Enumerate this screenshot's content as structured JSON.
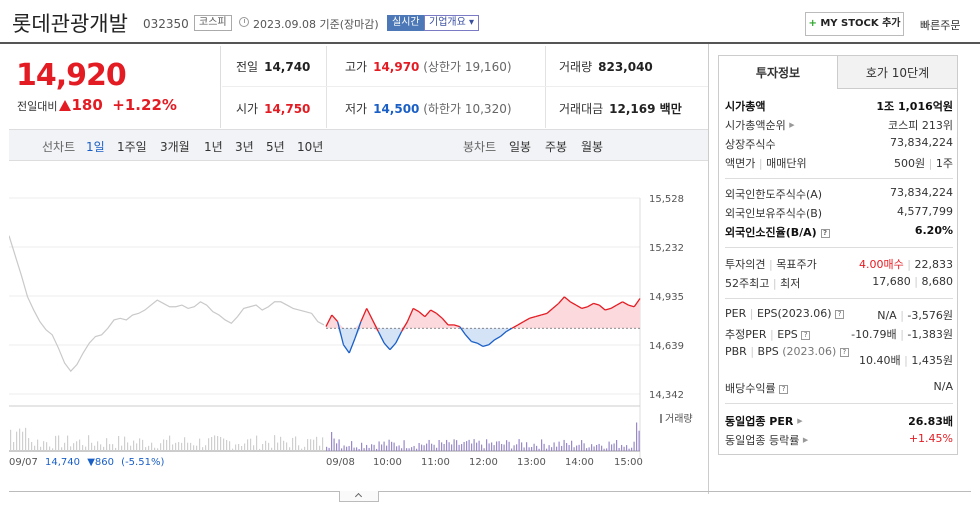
{
  "header": {
    "company_name": "롯데관광개발",
    "code": "032350",
    "market": "코스피",
    "date_label": "2023.09.08 기준(장마감)",
    "realtime_label": "실시간",
    "company_info_label": "기업개요 ▾",
    "mystock_plus": "+",
    "mystock_label": "MY STOCK 추가",
    "quick_order": "빠른주문"
  },
  "price": {
    "current": "14,920",
    "diff_label": "전일대비",
    "diff_value": "180",
    "diff_pct": "+1.22%"
  },
  "quote": {
    "prev_close": {
      "label": "전일",
      "value": "14,740"
    },
    "high": {
      "label": "고가",
      "value": "14,970",
      "sub": "(상한가 19,160)"
    },
    "volume": {
      "label": "거래량",
      "value": "823,040"
    },
    "open": {
      "label": "시가",
      "value": "14,750"
    },
    "low": {
      "label": "저가",
      "value": "14,500",
      "sub": "(하한가 10,320)"
    },
    "amount": {
      "label": "거래대금",
      "value": "12,169 백만"
    }
  },
  "periods": {
    "line_label": "선차트",
    "line_items": [
      "1일",
      "1주일",
      "3개월",
      "1년",
      "3년",
      "5년",
      "10년"
    ],
    "active": "1일",
    "candle_label": "봉차트",
    "candle_items": [
      "일봉",
      "주봉",
      "월봉"
    ]
  },
  "chart_data": {
    "type": "line",
    "y_ticks": [
      "15,528",
      "15,232",
      "14,935",
      "14,639",
      "14,342"
    ],
    "ylim": [
      14342,
      15528
    ],
    "baseline": 14740,
    "x_labels": [
      "09/07",
      "09/08",
      "10:00",
      "11:00",
      "12:00",
      "13:00",
      "14:00",
      "15:00"
    ],
    "volume_label": "거래량",
    "prev_day_summary": {
      "date": "09/07",
      "close": "14,740",
      "change": "▼860",
      "pct": "(-5.51%)"
    },
    "series": [
      {
        "values": [
          15300,
          15180,
          15060,
          14930,
          14850,
          14780,
          14730,
          14700,
          14620,
          14530,
          14480,
          14520,
          14590,
          14650,
          14690,
          14700,
          14740,
          14790,
          14800,
          14790,
          14820,
          14830,
          14850,
          14880,
          14910,
          14890,
          14870,
          14870,
          14880,
          14860,
          14870,
          14900,
          14880,
          14840,
          14820,
          14790,
          14770,
          14810,
          14860,
          14870,
          14880,
          14850,
          14870,
          14900,
          14900,
          14880,
          14860,
          14850,
          14840,
          14830,
          14780,
          14760
        ]
      },
      {
        "values": [
          14750,
          14820,
          14780,
          14640,
          14590,
          14680,
          14780,
          14860,
          14790,
          14720,
          14650,
          14610,
          14650,
          14720,
          14780,
          14860,
          14840,
          14810,
          14850,
          14830,
          14800,
          14760,
          14760,
          14750,
          14700,
          14660,
          14650,
          14630,
          14640,
          14670,
          14690,
          14720,
          14740,
          14760,
          14780,
          14800,
          14810,
          14820,
          14830,
          14860,
          14890,
          14930,
          14900,
          14880,
          14860,
          14870,
          14890,
          14880,
          14850,
          14860,
          14880,
          14900,
          14880,
          14870,
          14920
        ]
      }
    ]
  },
  "tabs": [
    "투자정보",
    "호가 10단계"
  ],
  "invest": {
    "market_cap": {
      "label": "시가총액",
      "value": "1조 1,016억원"
    },
    "market_cap_rank": {
      "label": "시가총액순위",
      "value": "코스피 213위"
    },
    "listed_shares": {
      "label": "상장주식수",
      "value": "73,834,224"
    },
    "face_value": {
      "label1": "액면가",
      "label2": "매매단위",
      "value1": "500원",
      "value2": "1주"
    },
    "foreign_limit": {
      "label": "외국인한도주식수(A)",
      "value": "73,834,224"
    },
    "foreign_hold": {
      "label": "외국인보유주식수(B)",
      "value": "4,577,799"
    },
    "foreign_ratio": {
      "label": "외국인소진율(B/A)",
      "value": "6.20%"
    },
    "opinion": {
      "label1": "투자의견",
      "label2": "목표주가",
      "value1": "4.00매수",
      "value2": "22,833"
    },
    "week52": {
      "label1": "52주최고",
      "label2": "최저",
      "value1": "17,680",
      "value2": "8,680"
    },
    "per": {
      "label1": "PER",
      "label2": "EPS(2023.06)",
      "value1": "N/A",
      "value2": "-3,576원"
    },
    "est_per": {
      "label1": "추정PER",
      "label2": "EPS",
      "value1": "-10.79배",
      "value2": "-1,383원"
    },
    "pbr": {
      "label1": "PBR",
      "label2": "BPS",
      "label_sub": "(2023.06)",
      "value1": "10.40배",
      "value2": "1,435원"
    },
    "dividend": {
      "label": "배당수익률",
      "value": "N/A"
    },
    "industry_per": {
      "label": "동일업종 PER",
      "value": "26.83배"
    },
    "industry_rate": {
      "label": "동일업종 등락률",
      "value": "+1.45%"
    }
  }
}
